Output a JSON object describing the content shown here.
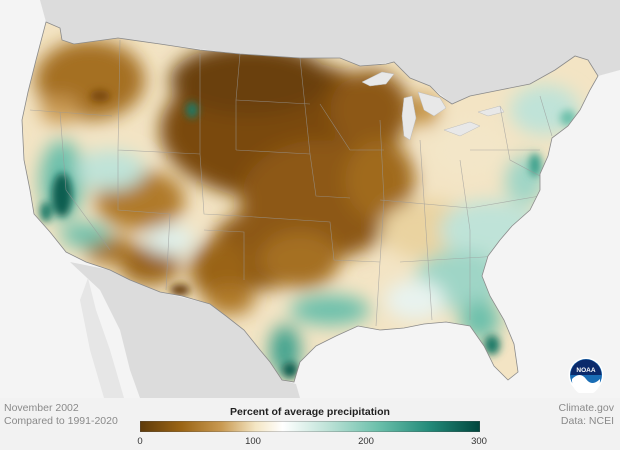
{
  "map": {
    "subject": "Percent of average precipitation, contiguous United States",
    "period": "November 2002",
    "baseline": "Compared to 1991-2020"
  },
  "legend": {
    "title": "Percent of average precipitation",
    "ticks": [
      "0",
      "100",
      "200",
      "300"
    ],
    "tick_values": [
      0,
      100,
      200,
      300
    ],
    "range": [
      0,
      300
    ],
    "colors": [
      "#5e3a0a",
      "#9a6414",
      "#c99a52",
      "#f4e6c4",
      "#ffffff",
      "#bfe3d8",
      "#6cc0ab",
      "#238b7a",
      "#00463d"
    ]
  },
  "footer": {
    "date": "November 2002",
    "comparison": "Compared to 1991-2020",
    "source_site": "Climate.gov",
    "source_data": "Data: NCEI"
  },
  "logo": {
    "name": "noaa-logo",
    "text": "NOAA",
    "color": "#1a6db5"
  }
}
